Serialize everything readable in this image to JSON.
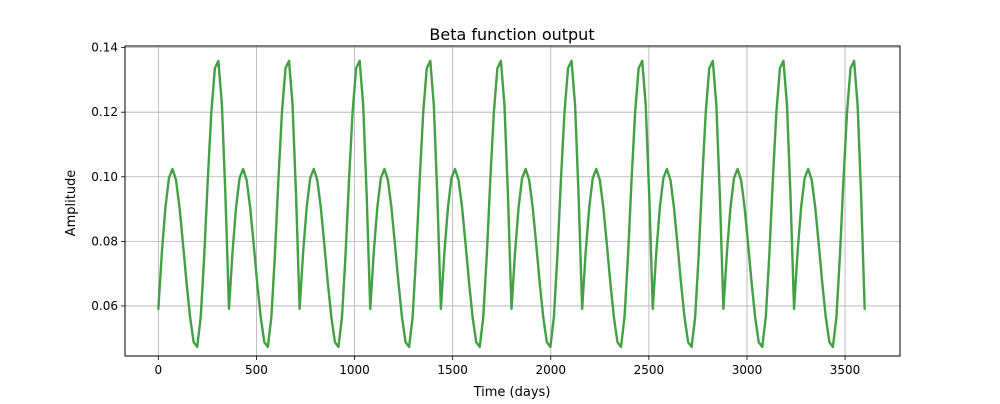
{
  "chart_data": {
    "type": "line",
    "title": "Beta function output",
    "xlabel": "Time (days)",
    "ylabel": "Amplitude",
    "xlim": [
      -170,
      3780
    ],
    "ylim": [
      0.0445,
      0.1405
    ],
    "x_ticks": [
      0,
      500,
      1000,
      1500,
      2000,
      2500,
      3000,
      3500
    ],
    "y_ticks": [
      0.06,
      0.08,
      0.1,
      0.12,
      0.14
    ],
    "x_tick_labels": [
      "0",
      "500",
      "1000",
      "1500",
      "2000",
      "2500",
      "3000",
      "3500"
    ],
    "y_tick_labels": [
      "0.06",
      "0.08",
      "0.10",
      "0.12",
      "0.14"
    ],
    "grid": true,
    "legend": "none",
    "series": [
      {
        "color": "#44a044",
        "x": [
          0,
          18,
          36,
          54,
          72,
          90,
          108,
          126,
          144,
          162,
          180,
          198,
          216,
          234,
          252,
          270,
          288,
          306,
          324,
          342,
          360,
          378,
          396,
          414,
          432,
          450,
          468,
          486,
          504,
          522,
          540,
          558,
          576,
          594,
          612,
          630,
          648,
          666,
          684,
          702,
          720,
          738,
          756,
          774,
          792,
          810,
          828,
          846,
          864,
          882,
          900,
          918,
          936,
          954,
          972,
          990,
          1008,
          1026,
          1044,
          1062,
          1080,
          1098,
          1116,
          1134,
          1152,
          1170,
          1188,
          1206,
          1224,
          1242,
          1260,
          1278,
          1296,
          1314,
          1332,
          1350,
          1368,
          1386,
          1404,
          1422,
          1440,
          1458,
          1476,
          1494,
          1512,
          1530,
          1548,
          1566,
          1584,
          1602,
          1620,
          1638,
          1656,
          1674,
          1692,
          1710,
          1728,
          1746,
          1764,
          1782,
          1800,
          1818,
          1836,
          1854,
          1872,
          1890,
          1908,
          1926,
          1944,
          1962,
          1980,
          1998,
          2016,
          2034,
          2052,
          2070,
          2088,
          2106,
          2124,
          2142,
          2160,
          2178,
          2196,
          2214,
          2232,
          2250,
          2268,
          2286,
          2304,
          2322,
          2340,
          2358,
          2376,
          2394,
          2412,
          2430,
          2448,
          2466,
          2484,
          2502,
          2520,
          2538,
          2556,
          2574,
          2592,
          2610,
          2628,
          2646,
          2664,
          2682,
          2700,
          2718,
          2736,
          2754,
          2772,
          2790,
          2808,
          2826,
          2844,
          2862,
          2880,
          2898,
          2916,
          2934,
          2952,
          2970,
          2988,
          3006,
          3024,
          3042,
          3060,
          3078,
          3096,
          3114,
          3132,
          3150,
          3168,
          3186,
          3204,
          3222,
          3240,
          3258,
          3276,
          3294,
          3312,
          3330,
          3348,
          3366,
          3384,
          3402,
          3420,
          3438,
          3456,
          3474,
          3492,
          3510,
          3528,
          3546,
          3564,
          3582,
          3600
        ],
        "y": [
          0.0591,
          0.0767,
          0.0905,
          0.0996,
          0.1024,
          0.099,
          0.0905,
          0.079,
          0.067,
          0.0564,
          0.0488,
          0.0473,
          0.0566,
          0.0758,
          0.0992,
          0.12,
          0.1336,
          0.1359,
          0.1222,
          0.0939,
          0.0591,
          0.0767,
          0.0905,
          0.0996,
          0.1024,
          0.099,
          0.0905,
          0.079,
          0.067,
          0.0564,
          0.0488,
          0.0473,
          0.0566,
          0.0758,
          0.0992,
          0.12,
          0.1336,
          0.1359,
          0.1222,
          0.0939,
          0.0591,
          0.0767,
          0.0905,
          0.0996,
          0.1024,
          0.099,
          0.0905,
          0.079,
          0.067,
          0.0564,
          0.0488,
          0.0473,
          0.0566,
          0.0758,
          0.0992,
          0.12,
          0.1336,
          0.1359,
          0.1222,
          0.0939,
          0.0591,
          0.0767,
          0.0905,
          0.0996,
          0.1024,
          0.099,
          0.0905,
          0.079,
          0.067,
          0.0564,
          0.0488,
          0.0473,
          0.0566,
          0.0758,
          0.0992,
          0.12,
          0.1336,
          0.1359,
          0.1222,
          0.0939,
          0.0591,
          0.0767,
          0.0905,
          0.0996,
          0.1024,
          0.099,
          0.0905,
          0.079,
          0.067,
          0.0564,
          0.0488,
          0.0473,
          0.0566,
          0.0758,
          0.0992,
          0.12,
          0.1336,
          0.1359,
          0.1222,
          0.0939,
          0.0591,
          0.0767,
          0.0905,
          0.0996,
          0.1024,
          0.099,
          0.0905,
          0.079,
          0.067,
          0.0564,
          0.0488,
          0.0473,
          0.0566,
          0.0758,
          0.0992,
          0.12,
          0.1336,
          0.1359,
          0.1222,
          0.0939,
          0.0591,
          0.0767,
          0.0905,
          0.0996,
          0.1024,
          0.099,
          0.0905,
          0.079,
          0.067,
          0.0564,
          0.0488,
          0.0473,
          0.0566,
          0.0758,
          0.0992,
          0.12,
          0.1336,
          0.1359,
          0.1222,
          0.0939,
          0.0591,
          0.0767,
          0.0905,
          0.0996,
          0.1024,
          0.099,
          0.0905,
          0.079,
          0.067,
          0.0564,
          0.0488,
          0.0473,
          0.0566,
          0.0758,
          0.0992,
          0.12,
          0.1336,
          0.1359,
          0.1222,
          0.0939,
          0.0591,
          0.0767,
          0.0905,
          0.0996,
          0.1024,
          0.099,
          0.0905,
          0.079,
          0.067,
          0.0564,
          0.0488,
          0.0473,
          0.0566,
          0.0758,
          0.0992,
          0.12,
          0.1336,
          0.1359,
          0.1222,
          0.0939,
          0.0591,
          0.0767,
          0.0905,
          0.0996,
          0.1024,
          0.099,
          0.0905,
          0.079,
          0.067,
          0.0564,
          0.0488,
          0.0473,
          0.0566,
          0.0758,
          0.0992,
          0.12,
          0.1336,
          0.1359,
          0.1222,
          0.0939,
          0.0591
        ]
      }
    ]
  }
}
